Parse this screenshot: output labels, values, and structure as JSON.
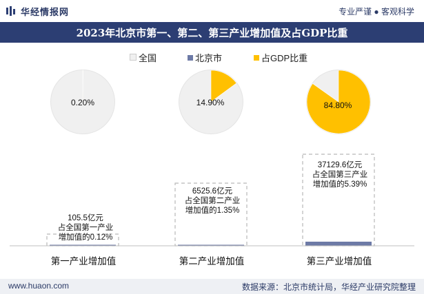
{
  "header": {
    "logo_text": "华经情报网",
    "tagline": "专业严谨 ● 客观科学"
  },
  "footer": {
    "website": "www.huaon.com",
    "source": "数据来源：北京市统计局，华经产业研究院整理"
  },
  "colors": {
    "national": "#f0f0f0",
    "beijing": "#6d7aa6",
    "share": "#ffc000",
    "title_bg": "#2c3e73"
  },
  "chart_data": {
    "type": "bar",
    "title": "2023年北京市第一、第二、第三产业增加值及占GDP比重",
    "legend": [
      "全国",
      "北京市",
      "占GDP比重"
    ],
    "legend_position": "top",
    "categories": [
      "第一产业增加值",
      "第二产业增加值",
      "第三产业增加值"
    ],
    "series": [
      {
        "name": "北京市",
        "values": [
          105.5,
          6525.6,
          37129.6
        ],
        "unit": "亿元"
      },
      {
        "name": "占全国比重",
        "values": [
          0.12,
          1.35,
          5.39
        ],
        "unit": "%"
      }
    ],
    "bar_labels": [
      [
        "105.5亿元",
        "占全国第一产业",
        "增加值的0.12%"
      ],
      [
        "6525.6亿元",
        "占全国第二产业",
        "增加值的1.35%"
      ],
      [
        "37129.6亿元",
        "占全国第三产业",
        "增加值的5.39%"
      ]
    ],
    "pies": [
      {
        "share": 0.2,
        "label": "0.20%"
      },
      {
        "share": 14.9,
        "label": "14.90%"
      },
      {
        "share": 84.8,
        "label": "84.80%"
      }
    ]
  }
}
